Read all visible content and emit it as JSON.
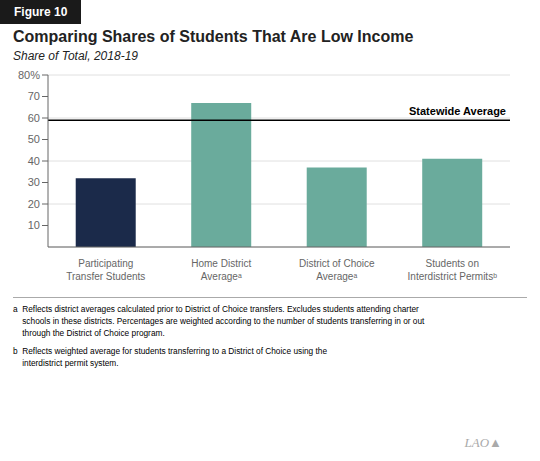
{
  "chart_data": {
    "type": "bar",
    "title": "Comparing Shares of Students That Are Low Income",
    "subtitle": "Share of Total, 2018-19",
    "figure_label": "Figure 10",
    "categories": [
      "Participating\nTransfer Students",
      "Home District\nAverageᵃ",
      "District of Choice\nAverageᵃ",
      "Students on\nInterdistrict Permitsᵇ"
    ],
    "values": [
      32,
      67,
      37,
      41
    ],
    "colors": [
      "#1b2a4a",
      "#6aab9c",
      "#6aab9c",
      "#6aab9c"
    ],
    "ylim": [
      0,
      80
    ],
    "yticks": [
      10,
      20,
      30,
      40,
      50,
      60,
      70,
      {
        "value": 80,
        "label": "80%"
      }
    ],
    "grid": true,
    "annotations": [
      {
        "text": "Statewide Average",
        "y": 59
      }
    ],
    "footnotes": [
      "a  Reflects district averages calculated prior to District of Choice transfers. Excludes students attending charter\n    schools in these districts. Percentages are weighted according to the number of students transferring in or out\n    through the District of Choice program.",
      "b  Reflects weighted average for students transferring to a District of Choice using the\n    interdistrict permit system."
    ],
    "watermark": "LAO▲"
  }
}
